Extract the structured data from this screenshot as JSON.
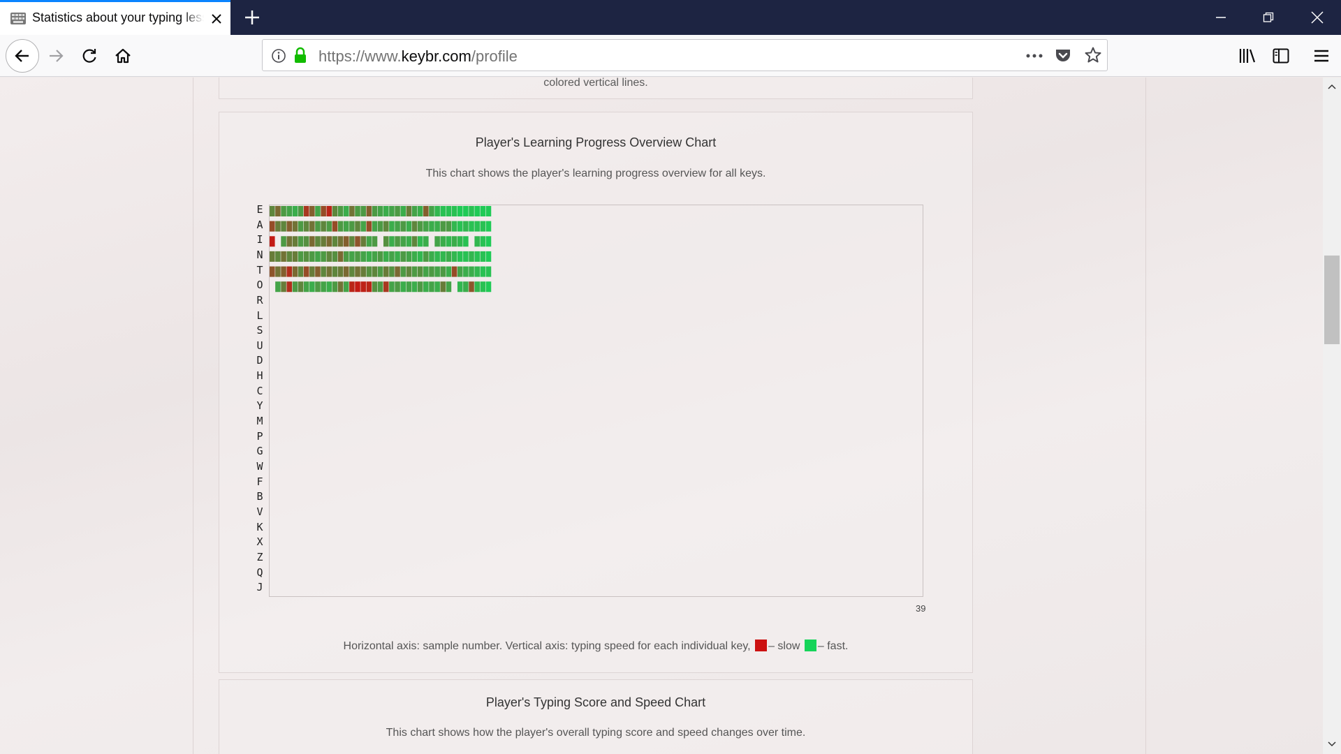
{
  "browser": {
    "tab_title": "Statistics about your typing lessons",
    "url_prefix": "https://www.",
    "url_domain": "keybr.com",
    "url_path": "/profile"
  },
  "top_card": {
    "text": "colored vertical lines."
  },
  "progress_card": {
    "title": "Player's Learning Progress Overview Chart",
    "description": "This chart shows the player's learning progress overview for all keys.",
    "x_max_label": "39",
    "legend_text_1": "Horizontal axis: sample number. Vertical axis: typing speed for each individual key,",
    "legend_slow": "– slow",
    "legend_fast": "– fast."
  },
  "score_card": {
    "title": "Player's Typing Score and Speed Chart",
    "description": "This chart shows how the player's overall typing score and speed changes over time."
  },
  "colors": {
    "slow": "#cc1111",
    "fast": "#17d45a",
    "tab_accent": "#0a84ff",
    "titlebar": "#1d2442"
  },
  "chart_data": {
    "type": "heatmap",
    "title": "Player's Learning Progress Overview Chart",
    "xlabel": "sample number",
    "ylabel": "typing speed for each individual key",
    "xlim": [
      0,
      39
    ],
    "x_tick_labels": [
      "39"
    ],
    "keys": [
      "E",
      "A",
      "I",
      "N",
      "T",
      "O",
      "R",
      "L",
      "S",
      "U",
      "D",
      "H",
      "C",
      "Y",
      "M",
      "P",
      "G",
      "W",
      "F",
      "B",
      "V",
      "K",
      "X",
      "Z",
      "Q",
      "J"
    ],
    "rows": [
      {
        "key": "E",
        "values": [
          0.6,
          0.45,
          0.7,
          0.75,
          0.8,
          0.7,
          0.2,
          0.4,
          0.75,
          0.3,
          0.1,
          0.6,
          0.7,
          0.8,
          0.5,
          0.7,
          0.7,
          0.4,
          0.7,
          0.75,
          0.8,
          0.75,
          0.7,
          0.8,
          0.55,
          0.75,
          0.8,
          0.4,
          0.75,
          0.85,
          0.9,
          0.9,
          0.9,
          0.95,
          0.95,
          0.9,
          0.95,
          0.95,
          0.95
        ]
      },
      {
        "key": "A",
        "values": [
          0.3,
          0.55,
          0.6,
          0.4,
          0.5,
          0.7,
          0.6,
          0.5,
          0.7,
          0.6,
          0.7,
          0.3,
          0.7,
          0.75,
          0.7,
          0.6,
          0.75,
          0.3,
          0.75,
          0.7,
          0.6,
          0.8,
          0.75,
          0.7,
          0.8,
          0.6,
          0.7,
          0.75,
          0.8,
          0.8,
          0.7,
          0.7,
          0.85,
          0.9,
          0.85,
          0.9,
          0.9,
          0.9,
          0.95
        ]
      },
      {
        "key": "I",
        "values": [
          0.05,
          null,
          0.7,
          0.5,
          0.55,
          0.7,
          0.65,
          0.45,
          0.6,
          0.55,
          0.45,
          0.6,
          0.5,
          0.4,
          0.6,
          0.35,
          0.55,
          0.75,
          0.7,
          null,
          0.65,
          0.8,
          0.7,
          0.75,
          0.8,
          0.6,
          0.85,
          0.8,
          null,
          0.75,
          0.8,
          0.85,
          0.8,
          0.85,
          0.9,
          null,
          0.85,
          0.9,
          0.95
        ]
      },
      {
        "key": "N",
        "values": [
          0.55,
          0.6,
          0.5,
          0.6,
          0.55,
          0.7,
          0.65,
          0.7,
          0.75,
          0.7,
          0.6,
          0.65,
          0.45,
          0.7,
          0.75,
          0.7,
          0.75,
          0.8,
          0.75,
          0.7,
          0.8,
          0.75,
          0.8,
          0.7,
          0.75,
          0.8,
          0.85,
          0.7,
          0.8,
          0.85,
          0.85,
          0.8,
          0.85,
          0.9,
          0.9,
          0.85,
          0.9,
          0.9,
          0.95
        ]
      },
      {
        "key": "T",
        "values": [
          0.35,
          0.5,
          0.4,
          0.15,
          0.45,
          0.6,
          0.3,
          0.55,
          0.4,
          0.6,
          0.5,
          0.6,
          0.55,
          0.45,
          0.6,
          0.5,
          0.55,
          0.65,
          0.6,
          0.7,
          0.55,
          0.65,
          0.45,
          0.7,
          0.6,
          0.7,
          0.65,
          0.75,
          0.7,
          0.75,
          0.7,
          0.8,
          0.3,
          0.75,
          0.8,
          0.8,
          0.85,
          0.9,
          0.9
        ]
      },
      {
        "key": "O",
        "values": [
          null,
          0.75,
          0.55,
          0.15,
          0.7,
          0.6,
          0.75,
          0.8,
          0.7,
          0.75,
          0.8,
          0.7,
          0.5,
          0.75,
          0.1,
          0.05,
          0.08,
          0.1,
          0.65,
          0.7,
          0.2,
          0.75,
          0.7,
          0.8,
          0.75,
          0.8,
          0.7,
          0.8,
          0.75,
          0.8,
          0.55,
          0.75,
          null,
          0.85,
          0.8,
          0.35,
          0.85,
          0.9,
          0.95
        ]
      },
      {
        "key": "R",
        "values": []
      },
      {
        "key": "L",
        "values": []
      },
      {
        "key": "S",
        "values": []
      },
      {
        "key": "U",
        "values": []
      },
      {
        "key": "D",
        "values": []
      },
      {
        "key": "H",
        "values": []
      },
      {
        "key": "C",
        "values": []
      },
      {
        "key": "Y",
        "values": []
      },
      {
        "key": "M",
        "values": []
      },
      {
        "key": "P",
        "values": []
      },
      {
        "key": "G",
        "values": []
      },
      {
        "key": "W",
        "values": []
      },
      {
        "key": "F",
        "values": []
      },
      {
        "key": "B",
        "values": []
      },
      {
        "key": "V",
        "values": []
      },
      {
        "key": "K",
        "values": []
      },
      {
        "key": "X",
        "values": []
      },
      {
        "key": "Z",
        "values": []
      },
      {
        "key": "Q",
        "values": []
      },
      {
        "key": "J",
        "values": []
      }
    ],
    "value_scale": "0 = slow (red), 1 = fast (green)",
    "legend": [
      {
        "label": "slow",
        "color": "#cc1111"
      },
      {
        "label": "fast",
        "color": "#17d45a"
      }
    ],
    "grid": false
  }
}
